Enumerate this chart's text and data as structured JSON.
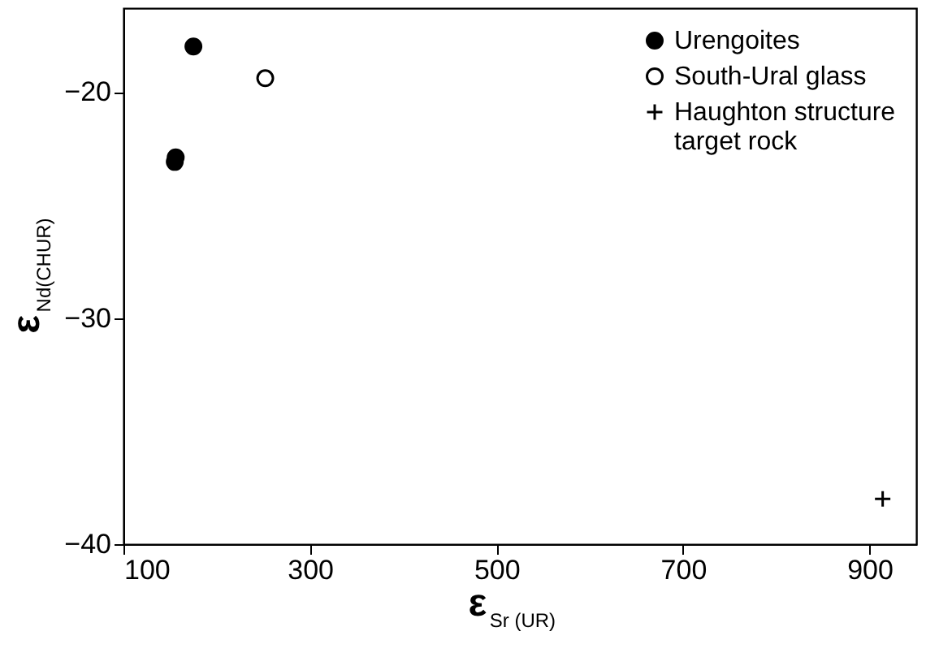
{
  "chart_data": {
    "type": "scatter",
    "xlabel": "ε$_{Sr (UR)}$",
    "ylabel": "ε$_{Nd(CHUR)}$",
    "xlim": [
      100,
      950
    ],
    "xticks": [
      100,
      300,
      500,
      700,
      900
    ],
    "ylim": [
      -40,
      -16.3
    ],
    "yticks": [
      -40,
      -30,
      -20
    ],
    "grid": false,
    "legend": "top right",
    "series": [
      {
        "name": "Urengoites",
        "color": "#000000",
        "marker": "circle",
        "x": [
          175,
          156,
          155
        ],
        "values": [
          -18.0,
          -22.9,
          -23.1
        ]
      },
      {
        "name": "South-Ural glass",
        "color": "#000000",
        "marker": "circle",
        "x": [
          252
        ],
        "values": [
          -19.4
        ]
      },
      {
        "name": "Haughton structure target rock",
        "color": "#000000",
        "marker": "cross",
        "x": [
          914
        ],
        "values": [
          -38.0
        ]
      }
    ]
  }
}
